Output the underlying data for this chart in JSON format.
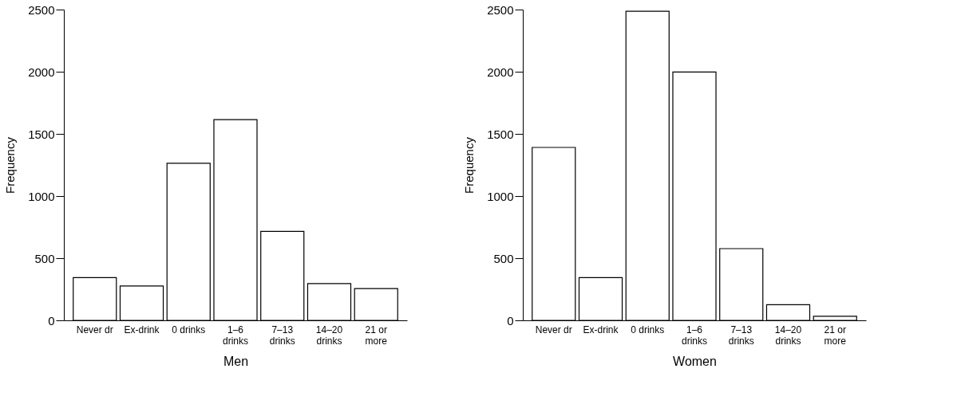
{
  "chart_data": [
    {
      "type": "bar",
      "xlabel": "Men",
      "ylabel": "Frequency",
      "categories": [
        "Never dr",
        "Ex-drink",
        "0 drinks",
        "1–6\ndrinks",
        "7–13\ndrinks",
        "14–20\ndrinks",
        "21 or\nmore"
      ],
      "values": [
        344,
        277,
        1264,
        1615,
        716,
        296,
        256
      ],
      "color": "#ffffff",
      "ylim": [
        0,
        2500
      ],
      "yticks": [
        0,
        500,
        1000,
        1500,
        2000,
        2500
      ],
      "grid": false
    },
    {
      "type": "bar",
      "xlabel": "Women",
      "ylabel": "Frequency",
      "categories": [
        "Never dr",
        "Ex-drink",
        "0 drinks",
        "1–6\ndrinks",
        "7–13\ndrinks",
        "14–20\ndrinks",
        "21 or\nmore"
      ],
      "values": [
        1391,
        344,
        2486,
        1998,
        577,
        126,
        33
      ],
      "color": "#ffffff",
      "ylim": [
        0,
        2500
      ],
      "yticks": [
        0,
        500,
        1000,
        1500,
        2000,
        2500
      ],
      "grid": false
    }
  ]
}
